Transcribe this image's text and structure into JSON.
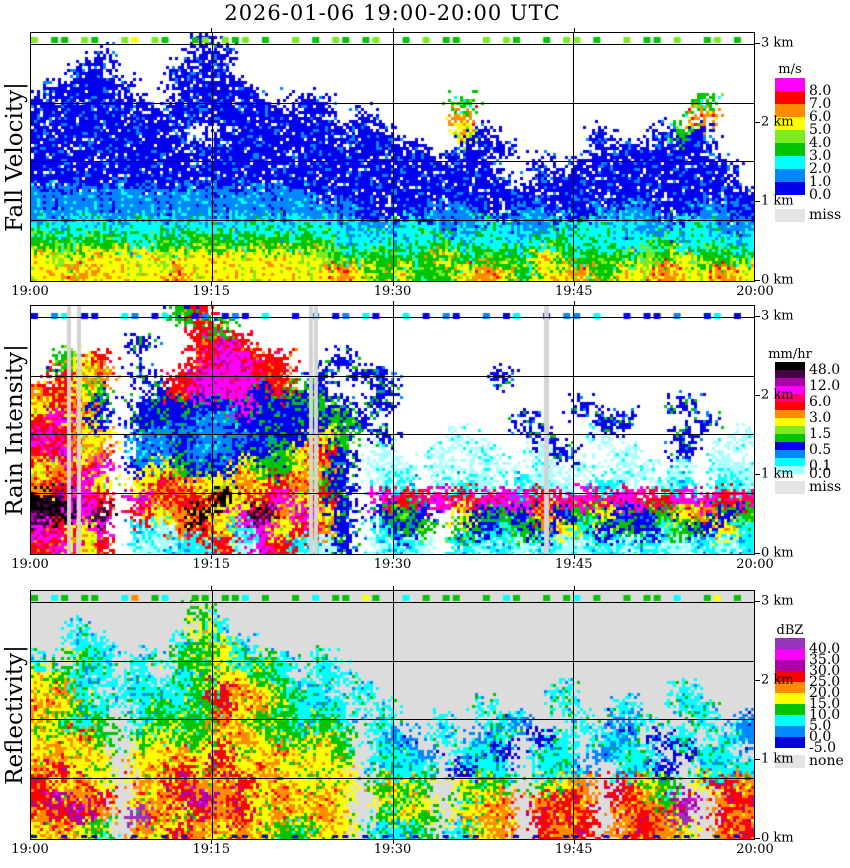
{
  "title": "2026-01-06  19:00-20:00 UTC",
  "time_labels": [
    "19:00",
    "19:15",
    "19:30",
    "19:45",
    "20:00"
  ],
  "height_tick_labels": [
    "3 km",
    "2 km",
    "1 km",
    "0 km"
  ],
  "height_tick_km": [
    3,
    2,
    1,
    0
  ],
  "height_gridlines_km": [
    3,
    2.25,
    1.5,
    0.75
  ],
  "chart_data": [
    {
      "type": "heatmap",
      "label": "Fall Velocity|",
      "unit": "m/s",
      "time_start": "19:00",
      "time_end": "20:00",
      "height_range_km": [
        0,
        3.1
      ],
      "legend": {
        "unit": "m/s",
        "colors": [
          "#FF00FF",
          "#FF0000",
          "#FF8C00",
          "#FFFF00",
          "#7CEC1F",
          "#00C400",
          "#00FFFF",
          "#0088FF",
          "#0000EE"
        ],
        "labels": [
          "8.0",
          "7.0",
          "6.0",
          "5.0",
          "4.0",
          "3.0",
          "2.0",
          "1.0",
          "0.0"
        ],
        "label_edges": [
          1,
          2,
          3,
          4,
          5,
          6,
          7,
          8,
          9
        ],
        "miss_label": "miss",
        "miss_color": "#E4E4E4"
      },
      "bg": "#FFFFFF",
      "ramp": ".bBcgGyorm",
      "palette": {
        "b": "#0000EE",
        "B": "#0088FF",
        "c": "#00FFFF",
        "g": "#00C400",
        "G": "#7CEC1F",
        "y": "#FFFF00",
        "o": "#FF8C00",
        "r": "#FF0000",
        "m": "#FF00FF"
      },
      "grid": [
        "........b...........................",
        "...b....bb..........................",
        "..bb...bbb..........................",
        ".bbbb..bbbb.........................",
        "bbbbbb.bbbbb.bb......g...........g..",
        "bbbbbbbbbbbbbbb.b....o...........o..",
        "bbbbbbbb.bbbbbbbbb...yb.....b..bgb..",
        "bbbbbbbbbbbbbbbbbbbb.bbb....bbbbbb..",
        "bbbbbbbbbbbbbbbbbbbbbbb..b.bbbbbbbb.",
        "bbbbbbbbbbbbbbbbbbbbbbbb.bbbbbbbbbb.",
        "BBBBBBBBBBBBBBbbbbbbbbbbbbbbbbbbbbbb",
        "BBBBBBBBBBBBBBBBbbbbBBbbBBbbBBBbbBBb",
        "ccccccccccccccccBBccBBccBBccccBBccBB",
        "gggggcgggggggggcccccgcccccgccccgcccc",
        "yGyyyyGyyyyyyyGgggggyggggyggggGgyggg",
        "yyoyyyyoyyyyyyyoygyggyoygyyogyyoyyoy"
      ],
      "top_strip": "G.gg.Gg..Gy.Gg..gG.GgG.g..G.g.Gg.gG..g.G.gg..G.Gg..g.GG.g..G.gg.G..gG.g.",
      "bottom_strip": "",
      "miss_columns": []
    },
    {
      "type": "heatmap",
      "label": "Rain Intensity|",
      "unit": "mm/hr",
      "time_start": "19:00",
      "time_end": "20:00",
      "height_range_km": [
        0,
        3.1
      ],
      "legend": {
        "unit": "mm/hr",
        "colors": [
          "#000000",
          "#460046",
          "#AA00AA",
          "#FF00FF",
          "#FF0066",
          "#FF0000",
          "#FF8C00",
          "#FFFF00",
          "#7CEC1F",
          "#00C400",
          "#0000EE",
          "#0088FF",
          "#00FFFF",
          "#AAFFFF"
        ],
        "labels": [
          "48.0",
          "12.0",
          "6.0",
          "3.0",
          "1.5",
          "0.5",
          "0.1",
          "0.0"
        ],
        "label_edges": [
          1,
          3,
          5,
          7,
          9,
          11,
          13,
          14
        ],
        "miss_label": "miss",
        "miss_color": "#E4E4E4"
      },
      "bg": "#FFFFFF",
      "ramp": ".pcBbgGyorPmuUk",
      "palette": {
        "p": "#AAFFFF",
        "c": "#00FFFF",
        "B": "#0088FF",
        "b": "#0000EE",
        "g": "#00C400",
        "G": "#7CEC1F",
        "y": "#FFFF00",
        "o": "#FF8C00",
        "r": "#FF0000",
        "P": "#FF0066",
        "m": "#FF00FF",
        "u": "#AA00AA",
        "U": "#460046",
        "k": "#000000"
      },
      "grid": [
        ".......gr...........................",
        "........rg..........................",
        ".....b..rmr.........................",
        ".gyr....rmmrr..b....................",
        ".ryo.b.rmmmrr.b.bb.....b............",
        "oryg..brmmmbrgb..b..................",
        "yrob.bbbbbmbbbgb.b.........b....b...",
        "rmyb.bbbBBbbbbbgb.......b...bb...b..",
        "mroy.BBbBBBbbbyg.b...p...b..p...b..p",
        "rmyo.BBbBBbbgyrb.p..p.p..pb..p..b.p.",
        "yorm.bygbbyggyob.pp.p.pp.p.p.pp.p.pp",
        "ormy.yroyyoyrogb.pc.pcp.cpp.cp.pc.cp",
        "kUmr.morrkyrmyrb.mrPmrPmmrPmPmPrmmrP",
        "UkmU.ryokymUomyb.bgb.ybgbobgybbgyobg",
        "mrym.cporycmyrob.cbg.gbcgbycbgbcgbyc",
        "rmyr.ppccrpmrcpb.pcp.cpcpcppcpcppcpc"
      ],
      "top_strip": "b.Bc.bb..cB.bc..bB.bBb.c..b.B.bB.cb..c.b.Bb..B.bc..b.BB.c..b.bb.B..bc.b.",
      "bottom_strip": "",
      "miss_columns": [
        {
          "x": 0.05,
          "w": 4
        },
        {
          "x": 0.064,
          "w": 4
        },
        {
          "x": 0.384,
          "w": 4
        },
        {
          "x": 0.391,
          "w": 4
        },
        {
          "x": 0.71,
          "w": 5
        }
      ],
      "miss_color": "#D4D4D4"
    },
    {
      "type": "heatmap",
      "label": "Reflectivity|",
      "unit": "dBZ",
      "time_start": "19:00",
      "time_end": "20:00",
      "height_range_km": [
        0,
        3.1
      ],
      "legend": {
        "unit": "dBZ",
        "colors": [
          "#9933BB",
          "#FF00FF",
          "#AA00AA",
          "#FF0000",
          "#FF8C00",
          "#FFFF00",
          "#00C400",
          "#00FFFF",
          "#0088FF",
          "#0000DD"
        ],
        "labels": [
          "40.0",
          "35.0",
          "30.0",
          "25.0",
          "20.0",
          "15.0",
          "10.0",
          "5.0",
          "0.0",
          "-5.0"
        ],
        "label_edges": [
          1,
          2,
          3,
          4,
          5,
          6,
          7,
          8,
          9,
          10
        ],
        "miss_label": "none",
        "miss_color": "#E4E4E4"
      },
      "bg": "#DCDCDC",
      "ramp": ".bBcgyorumv",
      "palette": {
        "b": "#0000DD",
        "B": "#0088FF",
        "c": "#00FFFF",
        "g": "#00C400",
        "y": "#FFFF00",
        "o": "#FF8C00",
        "r": "#FF0000",
        "u": "#AA00AA",
        "m": "#FF00FF",
        "v": "#9933BB"
      },
      "grid": [
        "....................................",
        "........g...........................",
        "..c.....yc..........................",
        "..cc...cgyc.........................",
        "c.gc.c.ggycgc.c.....................",
        "ygcc.c.cgyygc.cc....................",
        "yoc.ccccgroygcc.c.........c.....c...",
        "oygc.cgcgryogccc.c....c...c..c..cc..",
        "ygcg.cgggoyggcgc.c..c..cB..c.Bc..c.B",
        "yyog.gyggyoyggyg.cB.c.Bc.bc.cB.bc.cB",
        "yoyy.yyoyryyoyyg.ccB.ccb.cc.Bcc.bcc.",
        "oryy.yoryryoyyyy.ccc.bcc.ccB.ccb.ccc",
        "ryoy.oyrooryoyyy.gyg.ygg.gyo.ryg.yro",
        "ruor.yoruoryoyoy.ygy.gyo.oro.rogu.or",
        "oruo.voyroryoyoy.gyg.yoo.ror.orov.ro",
        "yoyg.oyroyoyggyy.ccg.cyo.ror.oroy.or"
      ],
      "top_strip": "g.cg.gg..co.gc..gg.ggc.g..g.c.gg.yg..c.g.gg..g.cg..g.gc.g..g.gg.c..gy.g.",
      "bottom_strip": "b..b.bb...b..b.b....bb.b..b...bb.b.b..b..b.bb...b.b..bb..b.b..b.bb..b.b.",
      "miss_columns": []
    }
  ]
}
